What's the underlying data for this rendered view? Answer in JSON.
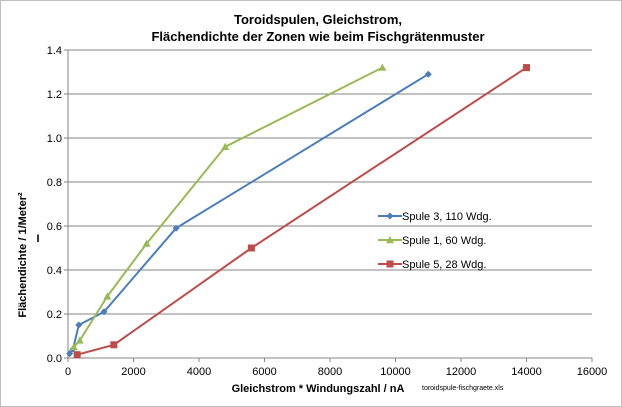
{
  "chart_data": {
    "type": "line",
    "title_line1": "Toroidspulen, Gleichstrom,",
    "title_line2": "Flächendichte der Zonen wie beim Fischgrätenmuster",
    "xlabel": "Gleichstrom * Windungszahl / nA",
    "ylabel": "Flächendichte  / 1/Meter²",
    "ylabel_extra": "I",
    "file_note": "toroidspule-fischgraete.xls",
    "xlim": [
      0,
      16000
    ],
    "ylim": [
      0,
      1.4
    ],
    "x_ticks": [
      0,
      2000,
      4000,
      6000,
      8000,
      10000,
      12000,
      14000,
      16000
    ],
    "y_ticks": [
      0.0,
      0.2,
      0.4,
      0.6,
      0.8,
      1.0,
      1.2,
      1.4
    ],
    "y_tick_labels": [
      "0.0",
      "0.2",
      "0.4",
      "0.6",
      "0.8",
      "1.0",
      "1.2",
      "1.4"
    ],
    "grid": "horizontal",
    "legend_position": "center-right",
    "series": [
      {
        "name": "Spule 3,  110 Wdg.",
        "color": "#4a7ebb",
        "marker": "diamond",
        "points": [
          [
            50,
            0.02
          ],
          [
            150,
            0.04
          ],
          [
            330,
            0.15
          ],
          [
            1100,
            0.21
          ],
          [
            3300,
            0.59
          ],
          [
            11000,
            1.29
          ]
        ]
      },
      {
        "name": "Spule 1,  60 Wdg.",
        "color": "#98b954",
        "marker": "triangle",
        "points": [
          [
            180,
            0.05
          ],
          [
            360,
            0.08
          ],
          [
            1200,
            0.28
          ],
          [
            2400,
            0.52
          ],
          [
            4800,
            0.96
          ],
          [
            9600,
            1.32
          ]
        ]
      },
      {
        "name": "Spule 5,  28 Wdg.",
        "color": "#be4b48",
        "marker": "square",
        "points": [
          [
            280,
            0.015
          ],
          [
            1400,
            0.06
          ],
          [
            5600,
            0.5
          ],
          [
            14000,
            1.32
          ]
        ]
      }
    ]
  }
}
